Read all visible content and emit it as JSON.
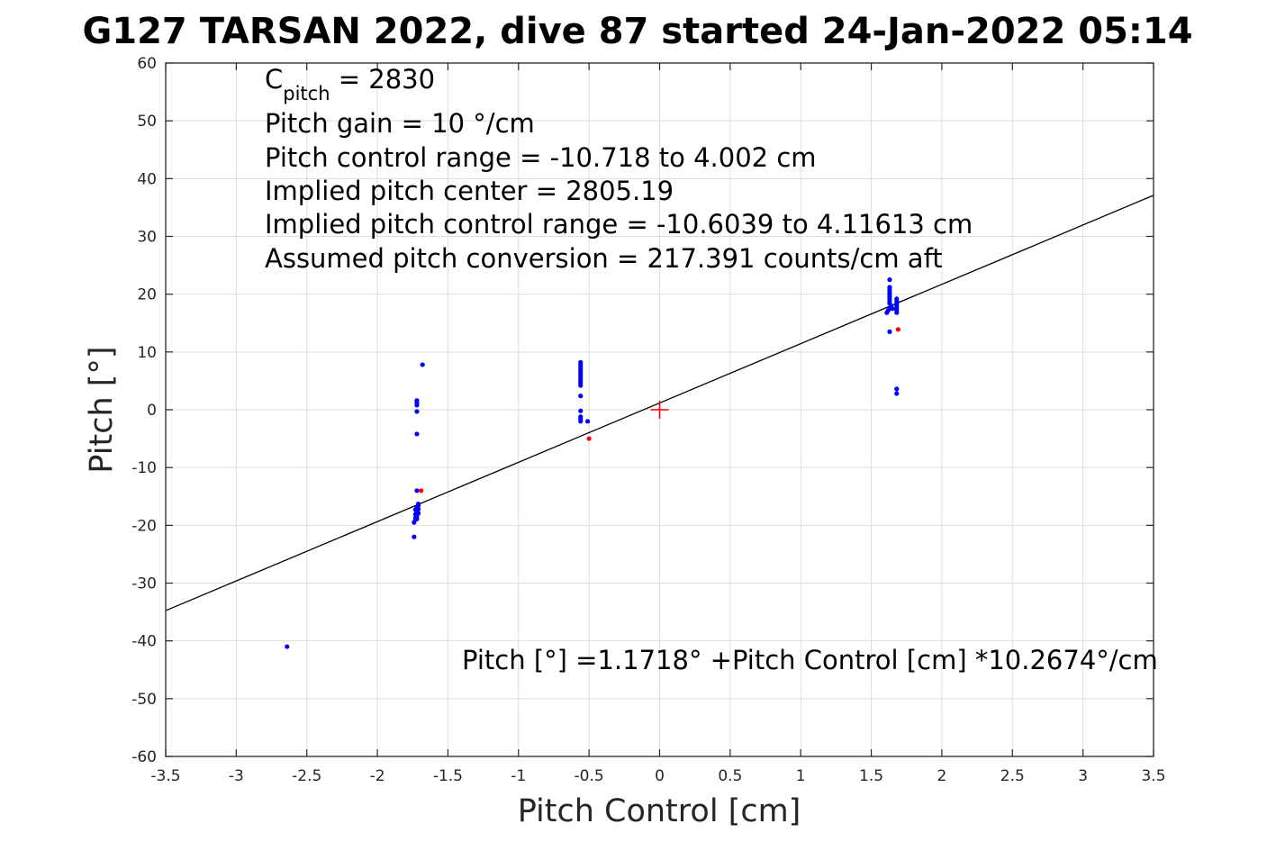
{
  "chart_data": {
    "type": "scatter",
    "title": "G127 TARSAN 2022, dive 87 started 24-Jan-2022 05:14",
    "xlabel": "Pitch Control [cm]",
    "ylabel": "Pitch [°]",
    "xlim": [
      -3.5,
      3.5
    ],
    "ylim": [
      -60,
      60
    ],
    "grid": true,
    "x_ticks": [
      -3.5,
      -3,
      -2.5,
      -2,
      -1.5,
      -1,
      -0.5,
      0,
      0.5,
      1,
      1.5,
      2,
      2.5,
      3,
      3.5
    ],
    "x_tick_labels": [
      "-3.5",
      "-3",
      "-2.5",
      "-2",
      "-1.5",
      "-1",
      "-0.5",
      "0",
      "0.5",
      "1",
      "1.5",
      "2",
      "2.5",
      "3",
      "3.5"
    ],
    "y_ticks": [
      -60,
      -50,
      -40,
      -30,
      -20,
      -10,
      0,
      10,
      20,
      30,
      40,
      50,
      60
    ],
    "y_tick_labels": [
      "-60",
      "-50",
      "-40",
      "-30",
      "-20",
      "-10",
      "0",
      "10",
      "20",
      "30",
      "40",
      "50",
      "60"
    ],
    "series": [
      {
        "marker": "dot",
        "color": "#0000ff",
        "points": [
          [
            -2.64,
            -41.0
          ],
          [
            -1.74,
            -22.0
          ],
          [
            -1.74,
            -19.5
          ],
          [
            -1.73,
            -19.0
          ],
          [
            -1.73,
            -18.7
          ],
          [
            -1.72,
            -18.4
          ],
          [
            -1.73,
            -18.1
          ],
          [
            -1.72,
            -17.8
          ],
          [
            -1.72,
            -17.5
          ],
          [
            -1.71,
            -17.2
          ],
          [
            -1.72,
            -16.9
          ],
          [
            -1.71,
            -16.6
          ],
          [
            -1.71,
            -16.3
          ],
          [
            -1.72,
            -18.9
          ],
          [
            -1.73,
            -17.3
          ],
          [
            -1.71,
            -17.9
          ],
          [
            -1.72,
            -14.0
          ],
          [
            -1.72,
            -4.2
          ],
          [
            -1.72,
            -0.3
          ],
          [
            -1.72,
            0.8
          ],
          [
            -1.72,
            1.2
          ],
          [
            -1.72,
            1.6
          ],
          [
            -1.68,
            7.8
          ],
          [
            -0.56,
            -2.0
          ],
          [
            -0.56,
            -1.6
          ],
          [
            -0.56,
            -1.2
          ],
          [
            -0.56,
            -0.2
          ],
          [
            -0.56,
            2.4
          ],
          [
            -0.56,
            4.2
          ],
          [
            -0.56,
            4.6
          ],
          [
            -0.56,
            5.0
          ],
          [
            -0.56,
            5.4
          ],
          [
            -0.56,
            5.8
          ],
          [
            -0.56,
            6.2
          ],
          [
            -0.56,
            6.6
          ],
          [
            -0.56,
            7.0
          ],
          [
            -0.56,
            7.4
          ],
          [
            -0.56,
            7.8
          ],
          [
            -0.56,
            8.2
          ],
          [
            -0.51,
            -2.0
          ],
          [
            1.63,
            13.5
          ],
          [
            1.61,
            16.8
          ],
          [
            1.62,
            17.2
          ],
          [
            1.63,
            17.6
          ],
          [
            1.64,
            18.0
          ],
          [
            1.63,
            18.4
          ],
          [
            1.63,
            18.8
          ],
          [
            1.63,
            19.2
          ],
          [
            1.63,
            19.6
          ],
          [
            1.63,
            20.0
          ],
          [
            1.63,
            20.4
          ],
          [
            1.63,
            20.8
          ],
          [
            1.63,
            21.2
          ],
          [
            1.63,
            22.5
          ],
          [
            1.65,
            17.5
          ],
          [
            1.68,
            16.8
          ],
          [
            1.68,
            17.2
          ],
          [
            1.68,
            17.6
          ],
          [
            1.68,
            18.0
          ],
          [
            1.68,
            18.4
          ],
          [
            1.68,
            18.8
          ],
          [
            1.68,
            19.2
          ],
          [
            1.68,
            2.8
          ],
          [
            1.68,
            3.6
          ]
        ]
      },
      {
        "marker": "dot",
        "color": "#ff0000",
        "points": [
          [
            -1.69,
            -14.0
          ],
          [
            -0.5,
            -5.0
          ],
          [
            1.69,
            13.9
          ]
        ]
      },
      {
        "marker": "plus",
        "color": "#ff0000",
        "points": [
          [
            0,
            0
          ]
        ]
      }
    ],
    "fit_line": {
      "color": "#000000",
      "intercept": 1.1718,
      "slope": 10.2674,
      "x_range": [
        -3.5,
        3.5
      ]
    },
    "annotations": {
      "c_pitch_main": "C",
      "c_pitch_sub": "pitch",
      "c_pitch_value": " = 2830",
      "lines": [
        "Pitch gain = 10 °/cm",
        "Pitch control range = -10.718 to 4.002 cm",
        "Implied pitch center = 2805.19",
        "Implied pitch control range = -10.6039 to 4.11613 cm",
        "Assumed pitch conversion = 217.391 counts/cm aft"
      ],
      "fit_equation": "Pitch [°] =1.1718° +Pitch Control [cm] *10.2674°/cm"
    }
  }
}
